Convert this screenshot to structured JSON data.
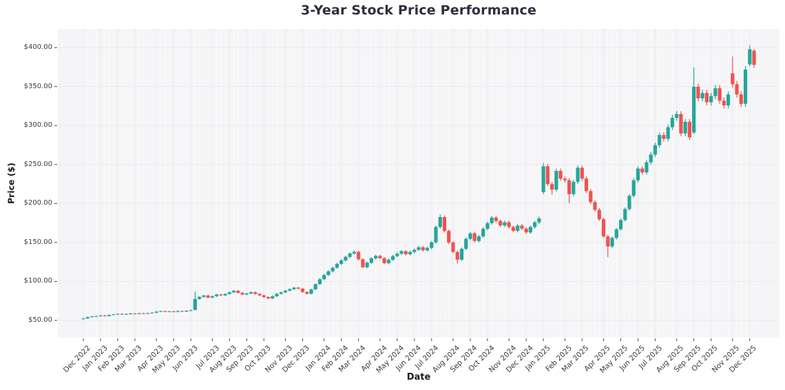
{
  "page": {
    "title": "3-Year Stock Price Performance"
  },
  "chart_data": {
    "type": "candlestick",
    "title": "3-Year Stock Price Performance",
    "xlabel": "Date",
    "ylabel": "Price ($)",
    "x_unit": "weekly candles",
    "grid": true,
    "legend": "none",
    "ylim": [
      27.9,
      423.9
    ],
    "colors": {
      "up": "#26a69a",
      "down": "#ef5350",
      "plot_bg": "#f5f5f7",
      "grid_major": "#e9e9ee",
      "grid_minor": "#fbfbfc",
      "tick_mark": "#444444",
      "title_text": "#2b2f3e",
      "tick_text": "#3a3a3a"
    },
    "y_ticks": [
      {
        "value": 400,
        "label": "$400.00"
      },
      {
        "value": 350,
        "label": "$350.00"
      },
      {
        "value": 300,
        "label": "$300.00"
      },
      {
        "value": 250,
        "label": "$250.00"
      },
      {
        "value": 200,
        "label": "$200.00"
      },
      {
        "value": 150,
        "label": "$150.00"
      },
      {
        "value": 100,
        "label": "$100.00"
      },
      {
        "value": 50,
        "label": "$50.00"
      }
    ],
    "x_ticks": [
      {
        "label": "Dec 2022",
        "week": 0
      },
      {
        "label": "Jan 2023",
        "week": 4
      },
      {
        "label": "Feb 2023",
        "week": 8
      },
      {
        "label": "Mar 2023",
        "week": 12
      },
      {
        "label": "Apr 2023",
        "week": 17
      },
      {
        "label": "May 2023",
        "week": 21
      },
      {
        "label": "Jun 2023",
        "week": 25
      },
      {
        "label": "Jul 2023",
        "week": 30
      },
      {
        "label": "Aug 2023",
        "week": 34
      },
      {
        "label": "Sep 2023",
        "week": 38
      },
      {
        "label": "Oct 2023",
        "week": 42
      },
      {
        "label": "Nov 2023",
        "week": 47
      },
      {
        "label": "Dec 2023",
        "week": 51
      },
      {
        "label": "Jan 2024",
        "week": 56
      },
      {
        "label": "Feb 2024",
        "week": 60
      },
      {
        "label": "Mar 2024",
        "week": 64
      },
      {
        "label": "Apr 2024",
        "week": 69
      },
      {
        "label": "May 2024",
        "week": 73
      },
      {
        "label": "Jun 2024",
        "week": 77
      },
      {
        "label": "Jul 2024",
        "week": 81
      },
      {
        "label": "Aug 2024",
        "week": 86
      },
      {
        "label": "Sep 2024",
        "week": 90
      },
      {
        "label": "Oct 2024",
        "week": 94
      },
      {
        "label": "Nov 2024",
        "week": 99
      },
      {
        "label": "Dec 2024",
        "week": 103
      },
      {
        "label": "Jan 2025",
        "week": 107
      },
      {
        "label": "Feb 2025",
        "week": 112
      },
      {
        "label": "Mar 2025",
        "week": 116
      },
      {
        "label": "Apr 2025",
        "week": 121
      },
      {
        "label": "May 2025",
        "week": 125
      },
      {
        "label": "Jun 2025",
        "week": 129
      },
      {
        "label": "Jul 2025",
        "week": 133
      },
      {
        "label": "Aug 2025",
        "week": 138
      },
      {
        "label": "Sep 2025",
        "week": 142
      },
      {
        "label": "Oct 2025",
        "week": 146
      },
      {
        "label": "Nov 2025",
        "week": 151
      },
      {
        "label": "Dec 2025",
        "week": 155
      }
    ],
    "ohlc_format": [
      "open",
      "high",
      "low",
      "close"
    ],
    "candles_ohlc": [
      [
        51.8,
        53.2,
        51.1,
        52.5
      ],
      [
        52.5,
        54.9,
        51.9,
        54.2
      ],
      [
        54.2,
        55.8,
        53.6,
        55.1
      ],
      [
        55.1,
        56.1,
        54.5,
        55.4
      ],
      [
        55.4,
        57.0,
        54.8,
        56.3
      ],
      [
        56.3,
        57.0,
        54.9,
        55.6
      ],
      [
        55.6,
        57.7,
        55.0,
        57.0
      ],
      [
        57.0,
        58.5,
        56.4,
        57.8
      ],
      [
        57.8,
        59.1,
        57.1,
        58.4
      ],
      [
        58.4,
        59.1,
        56.9,
        57.6
      ],
      [
        57.6,
        59.0,
        56.9,
        58.3
      ],
      [
        58.3,
        59.6,
        57.6,
        58.9
      ],
      [
        58.9,
        59.6,
        57.7,
        58.4
      ],
      [
        58.4,
        59.9,
        57.7,
        59.2
      ],
      [
        59.2,
        59.9,
        57.9,
        58.6
      ],
      [
        58.6,
        60.1,
        57.9,
        59.4
      ],
      [
        59.4,
        60.6,
        58.7,
        59.9
      ],
      [
        59.9,
        61.9,
        59.2,
        61.2
      ],
      [
        61.2,
        62.6,
        60.5,
        61.9
      ],
      [
        61.9,
        62.6,
        60.4,
        61.1
      ],
      [
        61.1,
        62.3,
        60.4,
        61.6
      ],
      [
        61.6,
        62.3,
        60.3,
        61.0
      ],
      [
        61.0,
        62.8,
        60.3,
        62.1
      ],
      [
        62.1,
        62.8,
        60.7,
        61.4
      ],
      [
        61.4,
        63.1,
        60.7,
        62.4
      ],
      [
        62.4,
        63.9,
        61.6,
        63.1
      ],
      [
        63.5,
        87.0,
        63.0,
        77.5
      ],
      [
        77.5,
        81.2,
        76.5,
        80.2
      ],
      [
        80.2,
        83.0,
        79.2,
        82.0
      ],
      [
        82.0,
        83.0,
        78.3,
        79.3
      ],
      [
        79.3,
        82.0,
        78.3,
        81.0
      ],
      [
        81.0,
        84.2,
        80.0,
        83.2
      ],
      [
        83.2,
        84.2,
        81.1,
        82.1
      ],
      [
        82.1,
        85.0,
        81.1,
        84.0
      ],
      [
        84.0,
        87.1,
        83.0,
        86.1
      ],
      [
        86.1,
        89.1,
        85.1,
        88.0
      ],
      [
        88.0,
        89.0,
        84.4,
        85.4
      ],
      [
        85.4,
        86.4,
        82.2,
        83.2
      ],
      [
        83.2,
        85.5,
        82.2,
        84.5
      ],
      [
        84.5,
        87.2,
        83.5,
        86.2
      ],
      [
        86.2,
        87.2,
        83.0,
        84.0
      ],
      [
        84.0,
        85.0,
        81.1,
        82.1
      ],
      [
        82.1,
        83.1,
        79.0,
        80.0
      ],
      [
        80.0,
        81.0,
        77.2,
        78.2
      ],
      [
        78.2,
        82.0,
        77.2,
        81.0
      ],
      [
        81.0,
        85.1,
        80.0,
        84.1
      ],
      [
        84.1,
        87.0,
        83.1,
        86.0
      ],
      [
        86.0,
        89.3,
        85.0,
        88.2
      ],
      [
        88.2,
        91.2,
        87.1,
        90.1
      ],
      [
        90.1,
        93.1,
        89.0,
        92.0
      ],
      [
        92.0,
        93.0,
        89.7,
        90.8
      ],
      [
        90.8,
        91.8,
        85.4,
        86.5
      ],
      [
        86.5,
        87.5,
        83.1,
        84.2
      ],
      [
        84.2,
        90.9,
        83.2,
        89.8
      ],
      [
        89.8,
        97.7,
        88.7,
        96.5
      ],
      [
        96.5,
        104.1,
        95.3,
        102.8
      ],
      [
        102.8,
        109.5,
        101.5,
        108.2
      ],
      [
        108.2,
        114.4,
        106.9,
        113.0
      ],
      [
        113.0,
        119.0,
        111.6,
        117.6
      ],
      [
        117.6,
        124.0,
        116.2,
        122.5
      ],
      [
        122.5,
        128.5,
        121.0,
        127.0
      ],
      [
        127.0,
        133.1,
        125.4,
        131.5
      ],
      [
        131.5,
        137.4,
        129.9,
        135.8
      ],
      [
        135.8,
        139.6,
        134.2,
        137.9
      ],
      [
        137.9,
        139.5,
        126.8,
        128.4
      ],
      [
        128.4,
        129.9,
        116.7,
        118.2
      ],
      [
        118.2,
        125.5,
        116.7,
        124.0
      ],
      [
        124.0,
        131.2,
        122.5,
        129.6
      ],
      [
        129.6,
        134.4,
        128.0,
        132.8
      ],
      [
        132.8,
        134.4,
        128.2,
        129.8
      ],
      [
        129.8,
        131.4,
        121.9,
        123.5
      ],
      [
        123.5,
        129.4,
        122.0,
        127.8
      ],
      [
        127.8,
        134.1,
        126.2,
        132.5
      ],
      [
        132.5,
        137.2,
        130.9,
        135.6
      ],
      [
        135.6,
        140.5,
        133.9,
        138.8
      ],
      [
        138.8,
        140.4,
        133.2,
        134.9
      ],
      [
        134.9,
        139.5,
        133.2,
        137.8
      ],
      [
        137.8,
        142.3,
        136.1,
        140.6
      ],
      [
        140.6,
        145.5,
        138.9,
        143.8
      ],
      [
        143.8,
        145.5,
        138.2,
        139.9
      ],
      [
        139.9,
        144.7,
        138.2,
        143.0
      ],
      [
        143.0,
        152.0,
        141.2,
        150.2
      ],
      [
        150.2,
        171.8,
        148.4,
        169.8
      ],
      [
        169.8,
        186.2,
        167.7,
        182.6
      ],
      [
        182.6,
        184.7,
        162.7,
        164.8
      ],
      [
        164.8,
        166.8,
        147.9,
        149.9
      ],
      [
        149.9,
        151.7,
        135.9,
        137.8
      ],
      [
        137.8,
        139.5,
        123.2,
        127.9
      ],
      [
        127.9,
        143.6,
        126.2,
        141.8
      ],
      [
        141.8,
        156.5,
        140.0,
        154.6
      ],
      [
        154.6,
        163.8,
        152.7,
        161.8
      ],
      [
        161.8,
        163.7,
        150.0,
        151.9
      ],
      [
        151.9,
        159.7,
        150.0,
        157.8
      ],
      [
        157.8,
        169.5,
        155.8,
        167.5
      ],
      [
        167.5,
        176.9,
        165.4,
        174.8
      ],
      [
        174.8,
        184.1,
        172.6,
        181.9
      ],
      [
        181.9,
        183.9,
        175.4,
        177.6
      ],
      [
        177.6,
        179.7,
        169.7,
        171.8
      ],
      [
        171.8,
        178.0,
        169.7,
        175.9
      ],
      [
        175.9,
        178.0,
        167.7,
        169.8
      ],
      [
        169.8,
        171.8,
        162.9,
        164.9
      ],
      [
        164.9,
        173.7,
        162.9,
        171.6
      ],
      [
        171.6,
        173.7,
        165.8,
        167.8
      ],
      [
        167.8,
        169.8,
        160.9,
        162.9
      ],
      [
        162.9,
        171.8,
        160.9,
        169.8
      ],
      [
        169.8,
        177.9,
        167.7,
        175.8
      ],
      [
        175.8,
        183.1,
        173.7,
        180.9
      ],
      [
        214.5,
        252.0,
        212.0,
        247.8
      ],
      [
        247.8,
        250.8,
        222.2,
        224.9
      ],
      [
        224.9,
        227.6,
        211.5,
        217.8
      ],
      [
        217.8,
        244.7,
        215.2,
        241.8
      ],
      [
        241.8,
        244.7,
        229.1,
        231.9
      ],
      [
        231.9,
        234.7,
        227.0,
        229.8
      ],
      [
        229.8,
        232.6,
        200.5,
        211.9
      ],
      [
        211.9,
        230.5,
        209.4,
        227.8
      ],
      [
        227.8,
        248.8,
        225.0,
        245.8
      ],
      [
        245.8,
        248.7,
        229.0,
        231.9
      ],
      [
        231.9,
        234.6,
        213.2,
        215.9
      ],
      [
        215.9,
        218.6,
        199.3,
        201.8
      ],
      [
        201.8,
        204.2,
        189.4,
        191.8
      ],
      [
        191.8,
        194.1,
        177.5,
        179.8
      ],
      [
        179.8,
        182.1,
        155.8,
        157.8
      ],
      [
        157.8,
        159.8,
        131.2,
        144.9
      ],
      [
        144.9,
        157.7,
        142.9,
        155.8
      ],
      [
        155.8,
        168.7,
        153.8,
        166.9
      ],
      [
        166.9,
        180.7,
        165.1,
        178.8
      ],
      [
        178.8,
        195.0,
        176.9,
        192.9
      ],
      [
        192.9,
        212.1,
        190.8,
        209.8
      ],
      [
        209.8,
        232.6,
        207.5,
        229.8
      ],
      [
        229.8,
        247.8,
        227.0,
        244.8
      ],
      [
        244.8,
        247.7,
        237.0,
        239.9
      ],
      [
        239.9,
        255.9,
        237.0,
        252.8
      ],
      [
        252.8,
        266.0,
        249.7,
        262.8
      ],
      [
        262.8,
        278.1,
        259.6,
        274.8
      ],
      [
        274.8,
        291.3,
        271.5,
        287.8
      ],
      [
        287.8,
        291.2,
        279.5,
        282.9
      ],
      [
        282.9,
        301.4,
        279.5,
        297.8
      ],
      [
        297.8,
        313.5,
        294.2,
        309.8
      ],
      [
        309.8,
        318.6,
        306.0,
        314.8
      ],
      [
        314.8,
        318.4,
        286.4,
        289.9
      ],
      [
        289.9,
        308.5,
        286.3,
        304.8
      ],
      [
        304.8,
        308.4,
        281.5,
        284.9
      ],
      [
        291.0,
        374.5,
        289.0,
        349.8
      ],
      [
        349.8,
        354.0,
        330.9,
        334.9
      ],
      [
        334.9,
        345.9,
        330.9,
        341.8
      ],
      [
        341.8,
        345.9,
        325.8,
        329.8
      ],
      [
        329.8,
        341.9,
        325.8,
        337.8
      ],
      [
        337.8,
        352.0,
        333.7,
        347.8
      ],
      [
        347.8,
        351.9,
        327.9,
        331.9
      ],
      [
        331.9,
        335.9,
        321.9,
        325.8
      ],
      [
        325.8,
        343.9,
        321.9,
        339.8
      ],
      [
        367.0,
        388.5,
        348.7,
        353.0
      ],
      [
        353.0,
        357.2,
        335.8,
        339.9
      ],
      [
        339.9,
        344.0,
        323.8,
        327.8
      ],
      [
        327.8,
        376.3,
        324.0,
        371.8
      ],
      [
        378.5,
        403.0,
        376.0,
        397.8
      ],
      [
        396.0,
        398.0,
        374.0,
        377.9
      ]
    ]
  }
}
